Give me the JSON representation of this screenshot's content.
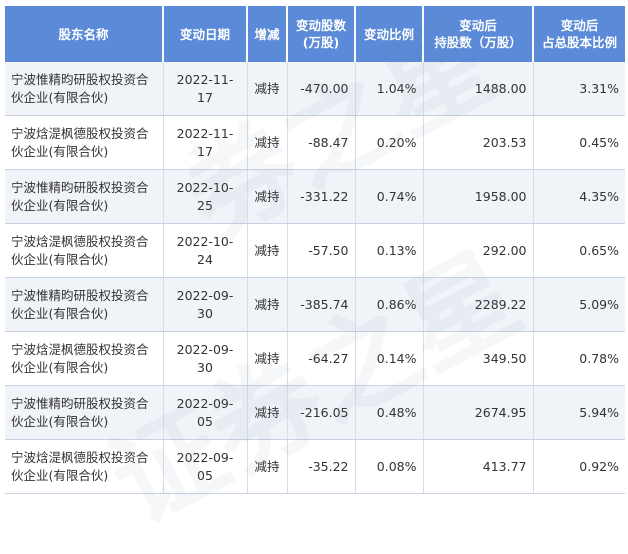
{
  "table": {
    "headers": [
      "股东名称",
      "变动日期",
      "增减",
      "变动股数\n(万股)",
      "变动比例",
      "变动后\n持股数（万股）",
      "变动后\n占总股本比例"
    ],
    "rows": [
      {
        "name": "宁波惟精昀研股权投资合伙企业(有限合伙)",
        "date": "2022-11-17",
        "direction": "减持",
        "change": "-470.00",
        "ratio": "1.04%",
        "after": "1488.00",
        "after_pct": "3.31%"
      },
      {
        "name": "宁波焓湜枫德股权投资合伙企业(有限合伙)",
        "date": "2022-11-17",
        "direction": "减持",
        "change": "-88.47",
        "ratio": "0.20%",
        "after": "203.53",
        "after_pct": "0.45%"
      },
      {
        "name": "宁波惟精昀研股权投资合伙企业(有限合伙)",
        "date": "2022-10-25",
        "direction": "减持",
        "change": "-331.22",
        "ratio": "0.74%",
        "after": "1958.00",
        "after_pct": "4.35%"
      },
      {
        "name": "宁波焓湜枫德股权投资合伙企业(有限合伙)",
        "date": "2022-10-24",
        "direction": "减持",
        "change": "-57.50",
        "ratio": "0.13%",
        "after": "292.00",
        "after_pct": "0.65%"
      },
      {
        "name": "宁波惟精昀研股权投资合伙企业(有限合伙)",
        "date": "2022-09-30",
        "direction": "减持",
        "change": "-385.74",
        "ratio": "0.86%",
        "after": "2289.22",
        "after_pct": "5.09%"
      },
      {
        "name": "宁波焓湜枫德股权投资合伙企业(有限合伙)",
        "date": "2022-09-30",
        "direction": "减持",
        "change": "-64.27",
        "ratio": "0.14%",
        "after": "349.50",
        "after_pct": "0.78%"
      },
      {
        "name": "宁波惟精昀研股权投资合伙企业(有限合伙)",
        "date": "2022-09-05",
        "direction": "减持",
        "change": "-216.05",
        "ratio": "0.48%",
        "after": "2674.95",
        "after_pct": "5.94%"
      },
      {
        "name": "宁波焓湜枫德股权投资合伙企业(有限合伙)",
        "date": "2022-09-05",
        "direction": "减持",
        "change": "-35.22",
        "ratio": "0.08%",
        "after": "413.77",
        "after_pct": "0.92%"
      }
    ]
  },
  "watermark": {
    "text_top": "券之星",
    "text_bottom": "证券之星"
  },
  "colors": {
    "header_bg": "#5a8ad8",
    "header_text": "#ffffff",
    "stripe": "#f0f3f8",
    "positive": "#3aa14a"
  }
}
